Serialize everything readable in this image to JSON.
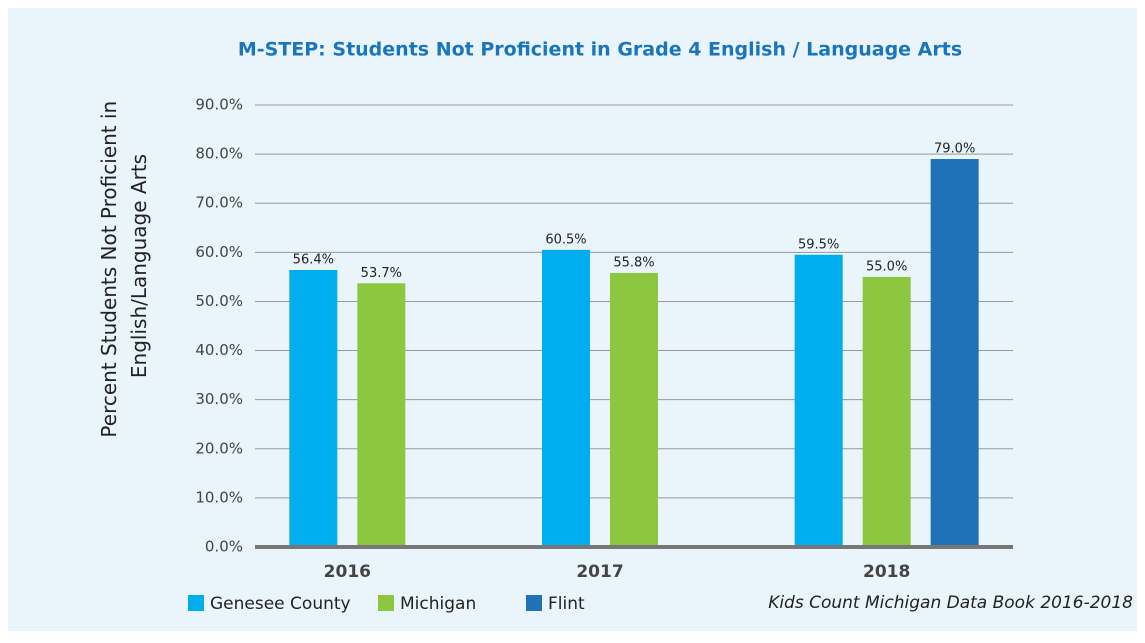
{
  "chart_data": {
    "type": "bar",
    "title": "M-STEP: Students Not Proficient in Grade 4 English / Language Arts",
    "ylabel": [
      "Percent Students Not Proficient in",
      "English/Language Arts"
    ],
    "categories": [
      "2016",
      "2017",
      "2018"
    ],
    "series": [
      {
        "name": "Genesee County",
        "color": "#00aeef",
        "values": [
          56.4,
          60.5,
          59.5
        ],
        "value_labels": [
          "56.4%",
          "60.5%",
          "59.5%"
        ]
      },
      {
        "name": "Michigan",
        "color": "#8dc63f",
        "values": [
          53.7,
          55.8,
          55.0
        ],
        "value_labels": [
          "53.7%",
          "55.8%",
          "55.0%"
        ]
      },
      {
        "name": "Flint",
        "color": "#1f72b8",
        "values": [
          null,
          null,
          79.0
        ],
        "value_labels": [
          null,
          null,
          "79.0%"
        ]
      }
    ],
    "ylim": [
      0,
      90
    ],
    "yticks": [
      {
        "value": 0,
        "label": "0.0%"
      },
      {
        "value": 10,
        "label": "10.0%"
      },
      {
        "value": 20,
        "label": "20.0%"
      },
      {
        "value": 30,
        "label": "30.0%"
      },
      {
        "value": 40,
        "label": "40.0%"
      },
      {
        "value": 50,
        "label": "50.0%"
      },
      {
        "value": 60,
        "label": "60.0%"
      },
      {
        "value": 70,
        "label": "70.0%"
      },
      {
        "value": 80,
        "label": "80.0%"
      },
      {
        "value": 90,
        "label": "90.0%"
      }
    ],
    "grid": true,
    "legend": "bottom-left",
    "source": "Kids Count Michigan Data Book 2016-2018"
  }
}
